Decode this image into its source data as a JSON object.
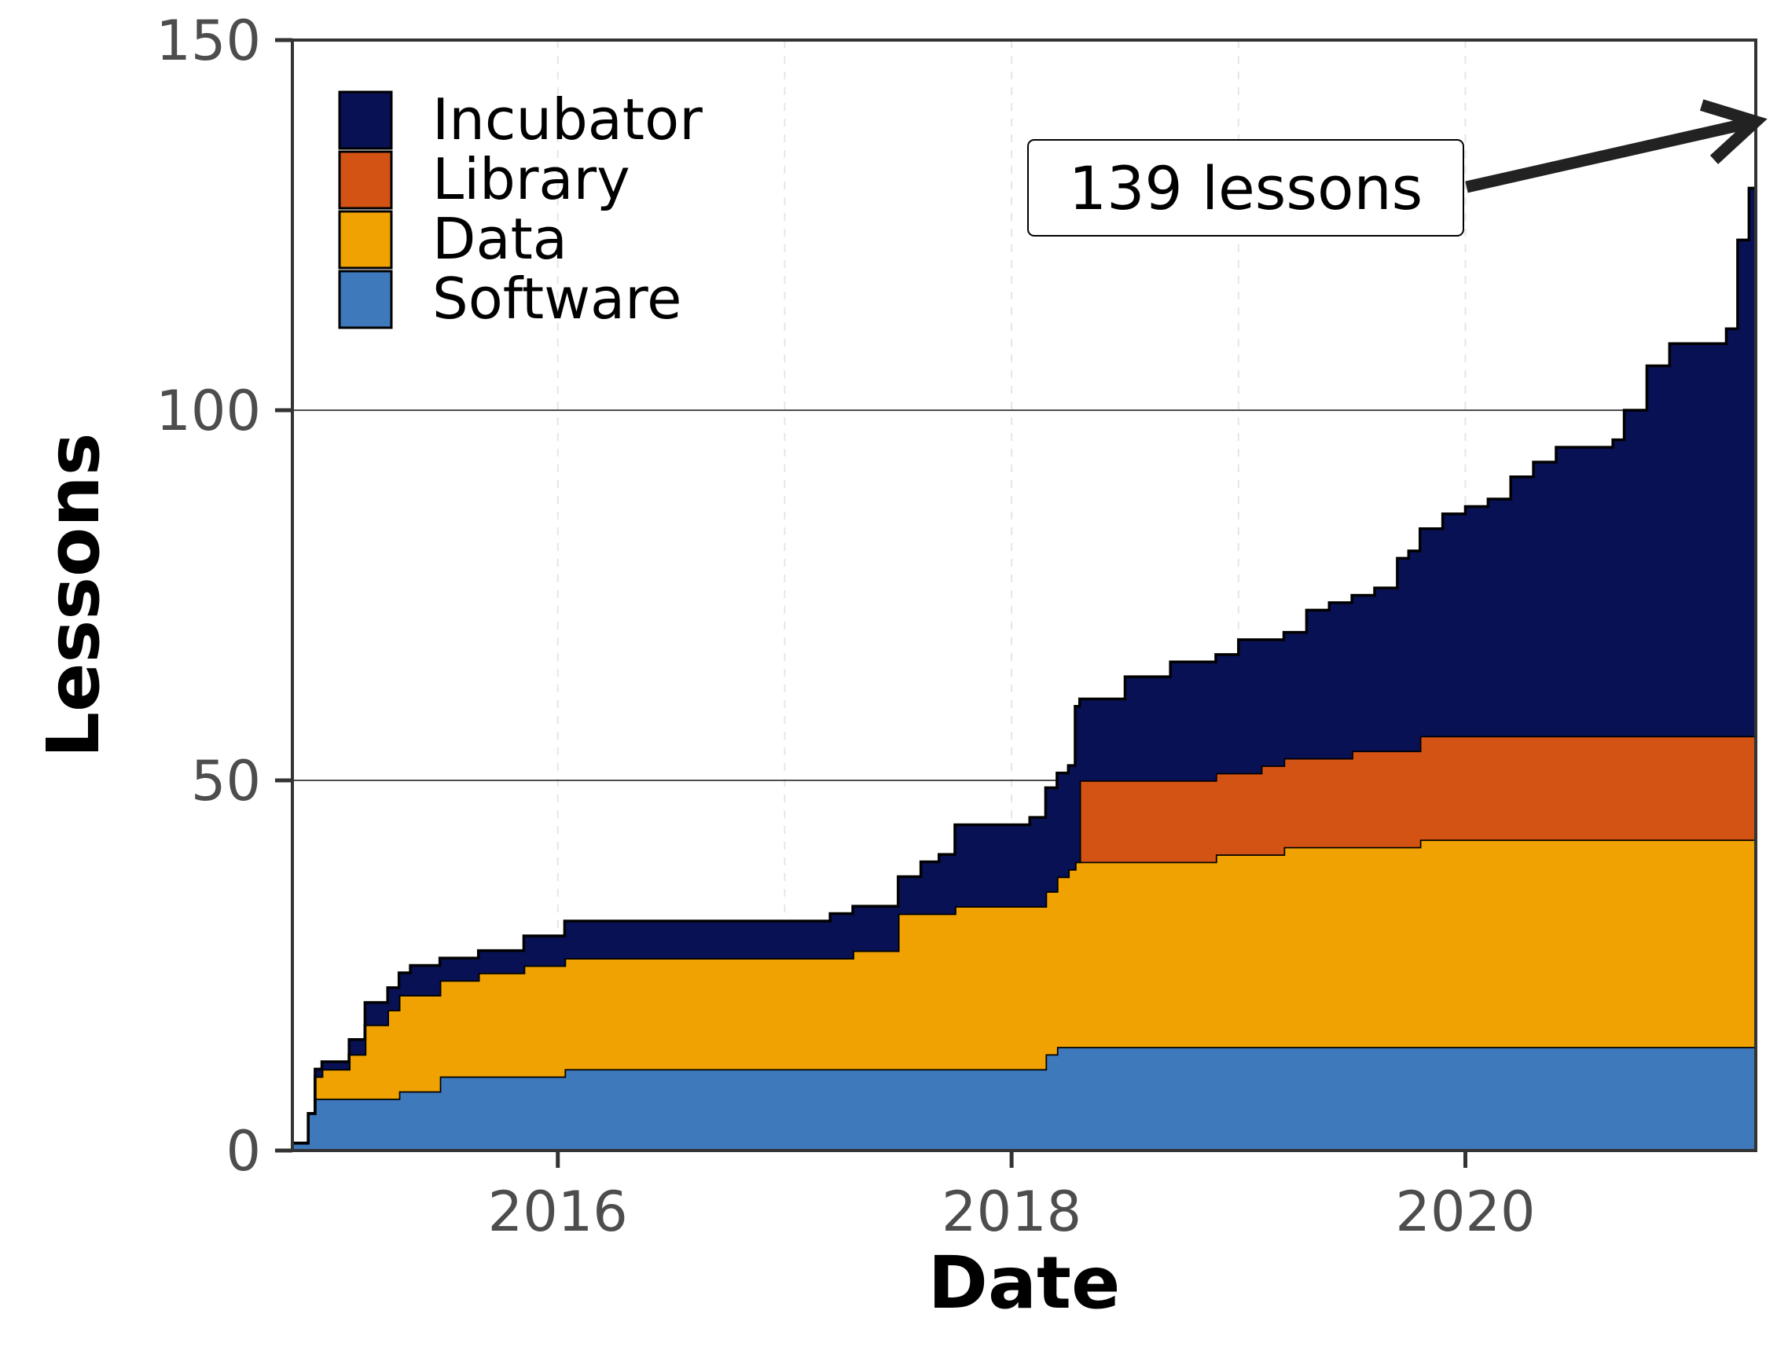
{
  "chart_data": {
    "type": "area",
    "stacked": true,
    "step": true,
    "xlabel": "Date",
    "ylabel": "Lessons",
    "xlim": [
      2014.83,
      2021.28
    ],
    "ylim": [
      0,
      150
    ],
    "x_ticks": [
      2016,
      2018,
      2020
    ],
    "y_ticks": [
      0,
      50,
      100,
      150
    ],
    "grid": {
      "major_y": true,
      "minor_x_dashed": true
    },
    "legend_position": "top-left",
    "legend_order": [
      "Incubator",
      "Library",
      "Data",
      "Software"
    ],
    "annotation": {
      "text": "139 lessons",
      "x": 2021.28,
      "y": 139
    },
    "colors": {
      "Software": "#3d79bb",
      "Data": "#efa202",
      "Library": "#d35315",
      "Incubator": "#081153",
      "outline": "#000000"
    },
    "x": [
      2014.83,
      2014.9,
      2014.93,
      2014.96,
      2015.0,
      2015.08,
      2015.15,
      2015.25,
      2015.3,
      2015.35,
      2015.4,
      2015.48,
      2015.55,
      2015.65,
      2015.75,
      2015.85,
      2016.0,
      2016.03,
      2016.5,
      2017.0,
      2017.2,
      2017.3,
      2017.4,
      2017.5,
      2017.6,
      2017.68,
      2017.75,
      2017.85,
      2018.0,
      2018.08,
      2018.15,
      2018.2,
      2018.25,
      2018.28,
      2018.3,
      2018.4,
      2018.5,
      2018.7,
      2018.9,
      2019.0,
      2019.1,
      2019.2,
      2019.3,
      2019.4,
      2019.5,
      2019.6,
      2019.7,
      2019.75,
      2019.8,
      2019.9,
      2020.0,
      2020.1,
      2020.2,
      2020.3,
      2020.4,
      2020.5,
      2020.6,
      2020.65,
      2020.7,
      2020.8,
      2020.9,
      2021.0,
      2021.05,
      2021.1,
      2021.15,
      2021.2,
      2021.25,
      2021.28
    ],
    "series": [
      {
        "name": "Software",
        "values": [
          1,
          5,
          7,
          7,
          7,
          7,
          7,
          7,
          8,
          8,
          8,
          10,
          10,
          10,
          10,
          10,
          10,
          11,
          11,
          11,
          11,
          11,
          11,
          11,
          11,
          11,
          11,
          11,
          11,
          11,
          13,
          14,
          14,
          14,
          14,
          14,
          14,
          14,
          14,
          14,
          14,
          14,
          14,
          14,
          14,
          14,
          14,
          14,
          14,
          14,
          14,
          14,
          14,
          14,
          14,
          14,
          14,
          14,
          14,
          14,
          14,
          14,
          14,
          14,
          14,
          14,
          14,
          14
        ]
      },
      {
        "name": "Data",
        "values": [
          0,
          0,
          3,
          4,
          4,
          6,
          10,
          12,
          13,
          13,
          13,
          13,
          13,
          14,
          14,
          15,
          15,
          15,
          15,
          15,
          15,
          16,
          16,
          21,
          21,
          21,
          22,
          22,
          22,
          22,
          22,
          23,
          24,
          25,
          25,
          25,
          25,
          25,
          26,
          26,
          26,
          27,
          27,
          27,
          27,
          27,
          27,
          27,
          28,
          28,
          28,
          28,
          28,
          28,
          28,
          28,
          28,
          28,
          28,
          28,
          28,
          28,
          28,
          28,
          28,
          28,
          28,
          28
        ]
      },
      {
        "name": "Library",
        "values": [
          0,
          0,
          0,
          0,
          0,
          0,
          0,
          0,
          0,
          0,
          0,
          0,
          0,
          0,
          0,
          0,
          0,
          0,
          0,
          0,
          0,
          0,
          0,
          0,
          0,
          0,
          0,
          0,
          0,
          0,
          0,
          0,
          0,
          0,
          11,
          11,
          11,
          11,
          11,
          11,
          12,
          12,
          12,
          12,
          13,
          13,
          13,
          13,
          14,
          14,
          14,
          14,
          14,
          14,
          14,
          14,
          14,
          14,
          14,
          14,
          14,
          14,
          14,
          14,
          14,
          14,
          14,
          14
        ]
      },
      {
        "name": "Incubator",
        "values": [
          0,
          0,
          1,
          1,
          1,
          2,
          3,
          3,
          3,
          4,
          4,
          3,
          3,
          3,
          3,
          4,
          4,
          5,
          5,
          5,
          6,
          6,
          6,
          5,
          7,
          8,
          11,
          11,
          11,
          12,
          14,
          14,
          14,
          21,
          11,
          11,
          14,
          16,
          16,
          18,
          17,
          17,
          20,
          21,
          21,
          22,
          26,
          27,
          28,
          30,
          31,
          32,
          35,
          37,
          39,
          39,
          39,
          40,
          44,
          50,
          53,
          53,
          53,
          53,
          55,
          67,
          74,
          83
        ]
      }
    ]
  }
}
